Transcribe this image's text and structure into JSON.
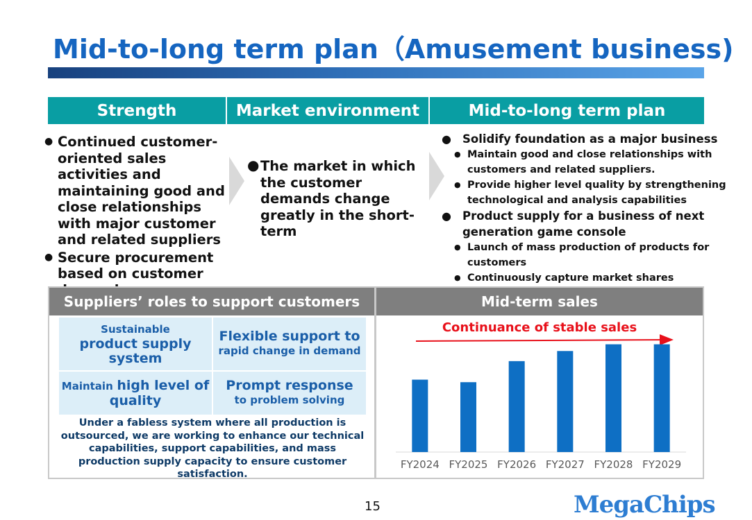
{
  "title": "Mid-to-long term plan（Amusement business)",
  "headers": {
    "strength": "Strength",
    "market": "Market environment",
    "plan": "Mid-to-long term plan"
  },
  "strength": {
    "bullets": [
      "Continued customer-oriented sales activities and maintaining good and close relationships with major customer and related suppliers",
      "Secure procurement based on customer demand"
    ]
  },
  "market": {
    "bullet": "The market in which the customer demands change greatly in the short-term"
  },
  "plan": {
    "items": [
      {
        "text": "Solidify foundation as a major business",
        "subs": [
          "Maintain good and close relationships with customers and related suppliers.",
          "Provide higher level quality by strengthening technological and analysis capabilities"
        ]
      },
      {
        "text": "Product supply for a business of next generation game console",
        "subs": [
          "Launch of mass production of products for customers",
          "Continuously capture market shares"
        ]
      }
    ]
  },
  "suppliers": {
    "heading": "Suppliers’ roles to support customers",
    "cell1_small": "Sustainable",
    "cell1_large": "product supply system",
    "cell2_large": "Flexible support to",
    "cell2_small": "rapid change in demand",
    "cell3_small": "Maintain",
    "cell3_large": "high level of quality",
    "cell4_large": "Prompt response",
    "cell4_small": "to problem solving",
    "note": "Under a fabless system where all production is outsourced, we are working to enhance our technical capabilities, support capabilities, and mass production supply capacity to ensure customer satisfaction."
  },
  "sales": {
    "heading": "Mid-term sales",
    "note": "Continuance of stable sales"
  },
  "chart_data": {
    "type": "bar",
    "categories": [
      "FY2024",
      "FY2025",
      "FY2026",
      "FY2027",
      "FY2028",
      "FY2029"
    ],
    "values": [
      86,
      83,
      108,
      120,
      128,
      128
    ],
    "ylim": [
      0,
      140
    ],
    "grid": false,
    "bar_color": "#0e6fc4",
    "annotation": "Continuance of stable sales",
    "annotation_color": "#e8101a"
  },
  "footer": {
    "page": "15",
    "logo": "MegaChips"
  },
  "colors": {
    "title": "#1565c0",
    "header_bg": "#099ea3",
    "panel_head_bg": "#7f7f7f",
    "cell_bg": "#dceef8"
  }
}
